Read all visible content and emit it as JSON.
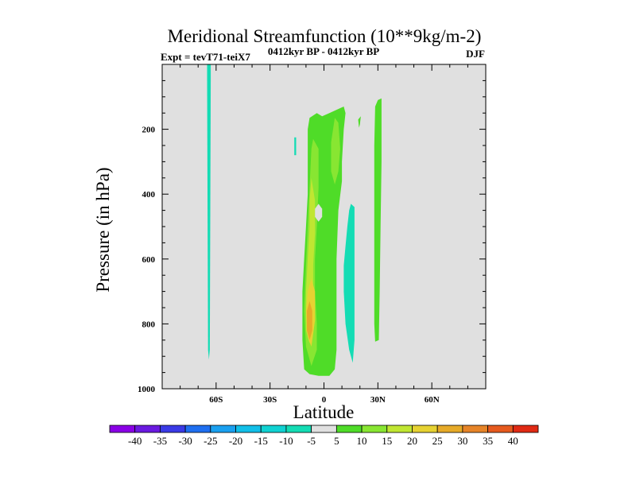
{
  "chart_data": {
    "type": "contour",
    "title": "Meridional Streamfunction (10**9kg/m-2)",
    "experiment_label": "Expt = tevT71-teiX7",
    "subtitle": "0412kyr BP - 0412kyr BP",
    "season": "DJF",
    "xlabel": "Latitude",
    "ylabel": "Pressure (in hPa)",
    "xlim": [
      -90,
      90
    ],
    "ylim": [
      1000,
      0
    ],
    "x_ticks": [
      {
        "value": -60,
        "label": "60S"
      },
      {
        "value": -30,
        "label": "30S"
      },
      {
        "value": 0,
        "label": "0"
      },
      {
        "value": 30,
        "label": "30N"
      },
      {
        "value": 60,
        "label": "60N"
      }
    ],
    "y_ticks": [
      {
        "value": 200,
        "label": "200"
      },
      {
        "value": 400,
        "label": "400"
      },
      {
        "value": 600,
        "label": "600"
      },
      {
        "value": 800,
        "label": "800"
      },
      {
        "value": 1000,
        "label": "1000"
      }
    ],
    "colorbar": {
      "levels": [
        -40,
        -35,
        -30,
        -25,
        -20,
        -15,
        -10,
        -5,
        5,
        10,
        15,
        20,
        25,
        30,
        35,
        40
      ],
      "colors": [
        "#8a00e6",
        "#6a1ae0",
        "#3a3ae6",
        "#1f6ff0",
        "#1aa0f0",
        "#12bfe8",
        "#10d2d2",
        "#14dcb4",
        "#e0e0e0",
        "#4fdc28",
        "#88e632",
        "#c0e632",
        "#e6d232",
        "#e6aa28",
        "#e68428",
        "#e65a1e",
        "#e02a14"
      ]
    },
    "regions": [
      {
        "name": "sh-negative-strip",
        "level": -7,
        "color": "#14dcb4",
        "polygon": [
          [
            -65,
            0
          ],
          [
            -63,
            0
          ],
          [
            -63,
            40
          ],
          [
            -63.5,
            880
          ],
          [
            -64,
            910
          ],
          [
            -64.5,
            880
          ],
          [
            -65,
            40
          ]
        ]
      },
      {
        "name": "sh-negative-patch",
        "level": -7,
        "color": "#14dcb4",
        "polygon": [
          [
            -16.5,
            225
          ],
          [
            -15.5,
            225
          ],
          [
            -15.5,
            280
          ],
          [
            -16.5,
            280
          ]
        ]
      },
      {
        "name": "tropical-cell-outer",
        "level": 7,
        "color": "#4fdc28",
        "polygon": [
          [
            -8,
            165
          ],
          [
            -4,
            150
          ],
          [
            -1,
            160
          ],
          [
            3,
            150
          ],
          [
            7,
            140
          ],
          [
            11,
            130
          ],
          [
            12,
            150
          ],
          [
            11,
            200
          ],
          [
            10,
            300
          ],
          [
            10,
            360
          ],
          [
            8,
            450
          ],
          [
            7,
            600
          ],
          [
            7,
            750
          ],
          [
            7,
            880
          ],
          [
            6,
            940
          ],
          [
            3,
            960
          ],
          [
            -3,
            960
          ],
          [
            -8,
            955
          ],
          [
            -11,
            940
          ],
          [
            -12,
            850
          ],
          [
            -12,
            700
          ],
          [
            -11,
            600
          ],
          [
            -10,
            500
          ],
          [
            -9,
            400
          ],
          [
            -9,
            300
          ],
          [
            -9,
            200
          ]
        ]
      },
      {
        "name": "tropical-cell-15",
        "level": 12,
        "color": "#88e632",
        "polygon": [
          [
            -6,
            230
          ],
          [
            -3,
            260
          ],
          [
            -3,
            380
          ],
          [
            -4,
            500
          ],
          [
            -5,
            600
          ],
          [
            -5,
            700
          ],
          [
            -4,
            800
          ],
          [
            -4,
            880
          ],
          [
            -7,
            930
          ],
          [
            -10,
            870
          ],
          [
            -11,
            760
          ],
          [
            -10,
            620
          ],
          [
            -9,
            500
          ],
          [
            -8,
            380
          ],
          [
            -7,
            260
          ]
        ]
      },
      {
        "name": "tropical-cell-15-north",
        "level": 12,
        "color": "#88e632",
        "polygon": [
          [
            6,
            165
          ],
          [
            8,
            180
          ],
          [
            9,
            260
          ],
          [
            8,
            330
          ],
          [
            6,
            370
          ],
          [
            4,
            330
          ],
          [
            4,
            240
          ]
        ]
      },
      {
        "name": "tropical-cell-20",
        "level": 17,
        "color": "#c0e632",
        "polygon": [
          [
            -7,
            350
          ],
          [
            -5,
            420
          ],
          [
            -5,
            520
          ],
          [
            -6,
            620
          ],
          [
            -6,
            720
          ],
          [
            -6,
            820
          ],
          [
            -8,
            860
          ],
          [
            -10,
            820
          ],
          [
            -10,
            700
          ],
          [
            -9,
            600
          ],
          [
            -8,
            500
          ],
          [
            -8,
            420
          ]
        ]
      },
      {
        "name": "tropical-cell-25",
        "level": 22,
        "color": "#e6d232",
        "polygon": [
          [
            -7,
            660
          ],
          [
            -5,
            700
          ],
          [
            -5,
            790
          ],
          [
            -7,
            870
          ],
          [
            -9,
            840
          ],
          [
            -10,
            760
          ],
          [
            -9,
            700
          ]
        ]
      },
      {
        "name": "tropical-cell-30",
        "level": 27,
        "color": "#e6aa28",
        "polygon": [
          [
            -8,
            730
          ],
          [
            -6.5,
            760
          ],
          [
            -6.5,
            820
          ],
          [
            -8,
            850
          ],
          [
            -9.5,
            820
          ],
          [
            -9.5,
            760
          ]
        ]
      },
      {
        "name": "tropical-cell-hole",
        "level": 0,
        "color": "#e0e0e0",
        "polygon": [
          [
            -3,
            430
          ],
          [
            -1,
            445
          ],
          [
            -1,
            470
          ],
          [
            -3,
            485
          ],
          [
            -5,
            470
          ],
          [
            -5,
            445
          ]
        ]
      },
      {
        "name": "nh-negative-cell",
        "level": -7,
        "color": "#14dcb4",
        "polygon": [
          [
            15,
            430
          ],
          [
            17,
            440
          ],
          [
            17,
            600
          ],
          [
            17,
            750
          ],
          [
            17,
            850
          ],
          [
            16,
            920
          ],
          [
            14,
            880
          ],
          [
            12,
            800
          ],
          [
            11,
            700
          ],
          [
            11,
            620
          ],
          [
            12,
            560
          ],
          [
            13,
            500
          ],
          [
            14,
            450
          ]
        ]
      },
      {
        "name": "nh-positive-fleck",
        "level": 7,
        "color": "#4fdc28",
        "polygon": [
          [
            19,
            170
          ],
          [
            20.5,
            160
          ],
          [
            20,
            185
          ],
          [
            19.5,
            195
          ]
        ]
      },
      {
        "name": "nh-positive-strip",
        "level": 7,
        "color": "#4fdc28",
        "polygon": [
          [
            30,
            110
          ],
          [
            32,
            105
          ],
          [
            32,
            300
          ],
          [
            31.5,
            500
          ],
          [
            31,
            700
          ],
          [
            30.5,
            850
          ],
          [
            28.5,
            855
          ],
          [
            28,
            800
          ],
          [
            28,
            600
          ],
          [
            28,
            400
          ],
          [
            28,
            250
          ],
          [
            28.5,
            130
          ]
        ]
      }
    ]
  }
}
